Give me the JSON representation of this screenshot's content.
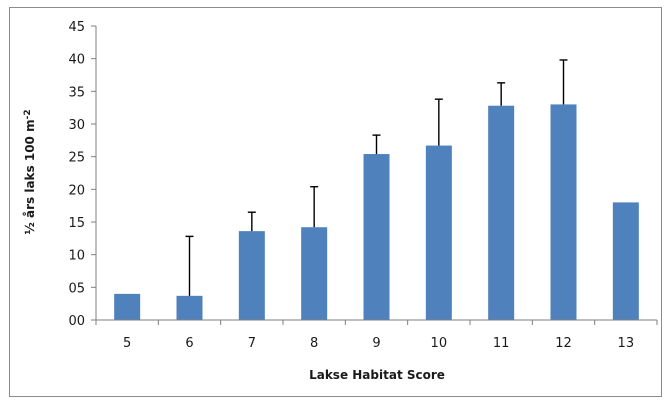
{
  "chart_data": {
    "type": "bar",
    "categories": [
      "5",
      "6",
      "7",
      "8",
      "9",
      "10",
      "11",
      "12",
      "13"
    ],
    "values": [
      4.0,
      3.7,
      13.6,
      14.2,
      25.4,
      26.7,
      32.8,
      33.0,
      18.0
    ],
    "error_upper": [
      4.0,
      12.8,
      16.5,
      20.4,
      28.3,
      33.8,
      36.3,
      39.8,
      18.0
    ],
    "xlabel": "Lakse Habitat Score",
    "ylabel_prefix": "½ års laks 100 m",
    "ylabel_sup": "-2",
    "ylim": [
      0,
      45
    ],
    "yticks": [
      0,
      5,
      10,
      15,
      20,
      25,
      30,
      35,
      40,
      45
    ],
    "ytick_labels": [
      "00",
      "05",
      "10",
      "15",
      "20",
      "25",
      "30",
      "35",
      "40",
      "45"
    ],
    "grid": false,
    "legend": "none",
    "colors": {
      "bar": "#4f81bd",
      "error": "#000000",
      "axis": "#7f7f7f"
    }
  }
}
